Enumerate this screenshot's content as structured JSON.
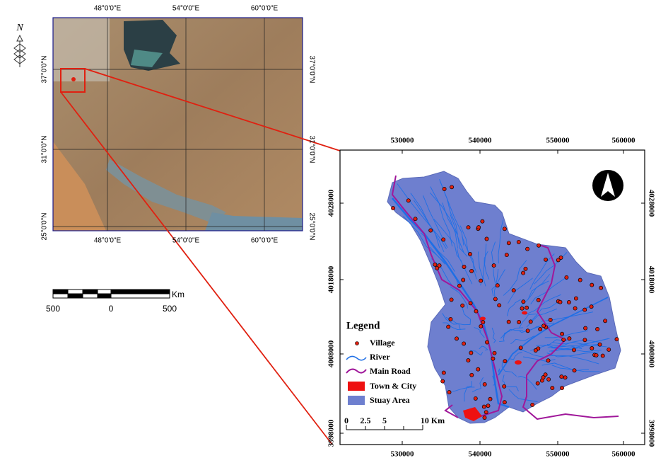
{
  "overview_map": {
    "lon_labels": [
      "48°0'0\"E",
      "54°0'0\"E",
      "60°0'0\"E"
    ],
    "lat_labels": [
      "37°0'0\"N",
      "31°0'0\"N",
      "25°0'0\"N"
    ],
    "north_label": "N"
  },
  "overview_scale": {
    "labels": [
      "500",
      "0",
      "500"
    ],
    "unit": "Km"
  },
  "study_map": {
    "x_labels": [
      "530000",
      "540000",
      "550000",
      "560000"
    ],
    "y_labels": [
      "4028000",
      "4018000",
      "4008000",
      "3998000"
    ]
  },
  "legend": {
    "title": "Legend",
    "items": [
      "Village",
      "River",
      "Main Road",
      "Town & City",
      "Stuay Area"
    ]
  },
  "study_scale": {
    "labels": [
      "0",
      "2.5",
      "5",
      "10 Km"
    ]
  }
}
